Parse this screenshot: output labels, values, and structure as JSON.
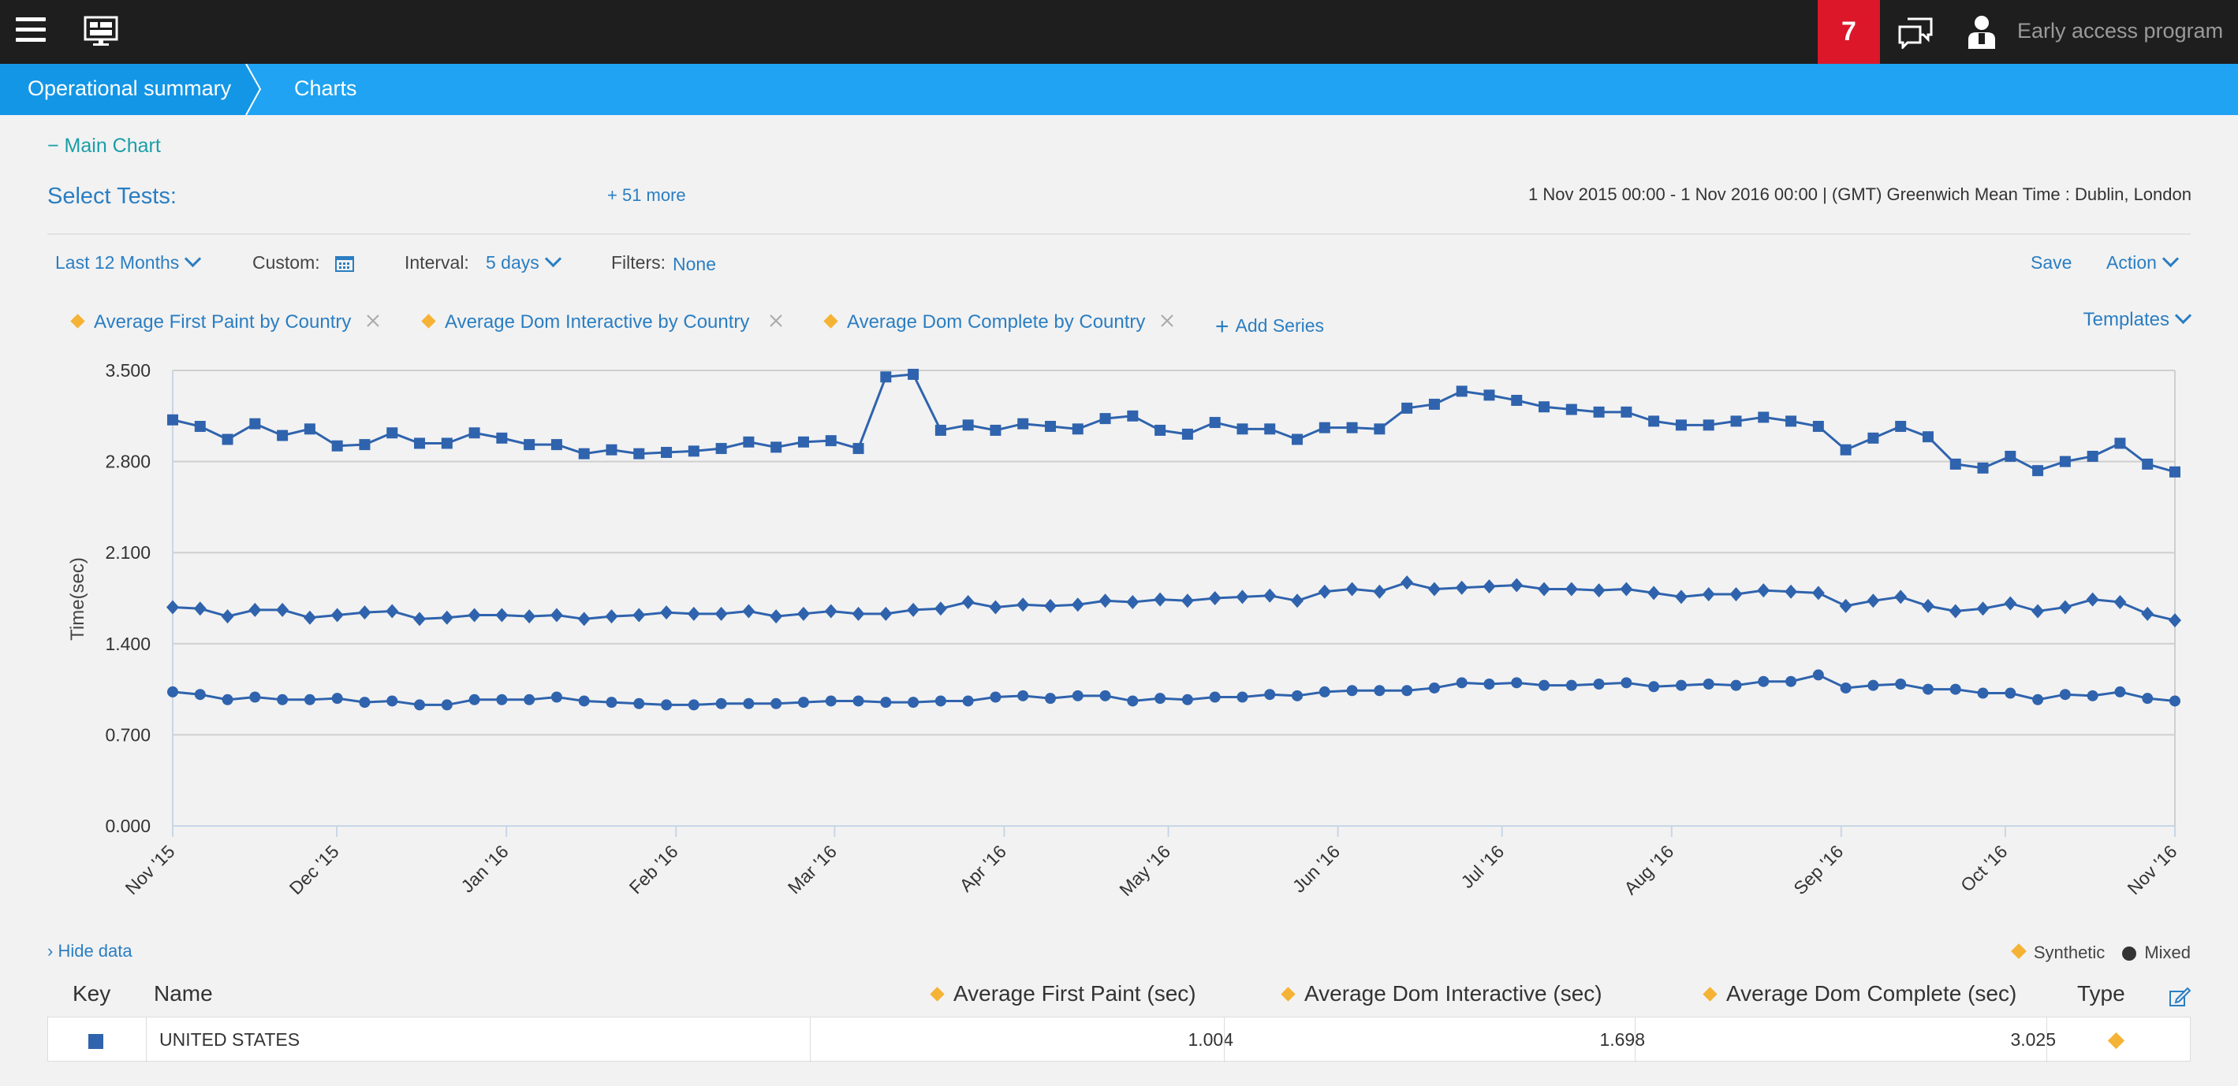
{
  "topbar": {
    "notification_count": "7",
    "early_access": "Early access program"
  },
  "breadcrumb": {
    "items": [
      "Operational summary",
      "Charts"
    ]
  },
  "main_chart_toggle": "− Main Chart",
  "select_tests": {
    "label": "Select Tests:",
    "more": "+ 51 more"
  },
  "date_range": "1 Nov 2015 00:00 - 1 Nov 2016 00:00  | (GMT) Greenwich Mean Time : Dublin, London",
  "controls": {
    "period": "Last 12 Months",
    "custom_label": "Custom:",
    "interval_label": "Interval:",
    "interval_value": "5 days",
    "filters_label": "Filters:",
    "filters_value": "None",
    "save": "Save",
    "action": "Action"
  },
  "series_chips": [
    "Average First Paint by Country",
    "Average Dom Interactive by Country",
    "Average Dom Complete by Country"
  ],
  "add_series": "Add Series",
  "templates": "Templates",
  "colors": {
    "series": "#2f63ad",
    "accent": "#2a7ec2",
    "synthetic": "#f5b335",
    "badge": "#dc172a",
    "breadcrumb": "#1fa3f2"
  },
  "chart_data": {
    "type": "line",
    "ylabel": "Time(sec)",
    "xlabel": "",
    "ylim": [
      0,
      3.5
    ],
    "y_ticks": [
      "0.000",
      "0.700",
      "1.400",
      "2.100",
      "2.800",
      "3.500"
    ],
    "x_tick_labels": [
      "Nov '15",
      "Dec '15",
      "Jan '16",
      "Feb '16",
      "Mar '16",
      "Apr '16",
      "May '16",
      "Jun '16",
      "Jul '16",
      "Aug '16",
      "Sep '16",
      "Oct '16",
      "Nov '16"
    ],
    "series": [
      {
        "marker": "square",
        "values": [
          3.12,
          3.07,
          2.97,
          3.09,
          3.0,
          3.05,
          2.92,
          2.93,
          3.02,
          2.94,
          2.94,
          3.02,
          2.98,
          2.93,
          2.93,
          2.86,
          2.89,
          2.86,
          2.87,
          2.88,
          2.9,
          2.95,
          2.91,
          2.95,
          2.96,
          2.9,
          3.45,
          3.47,
          3.04,
          3.08,
          3.04,
          3.09,
          3.07,
          3.05,
          3.13,
          3.15,
          3.04,
          3.01,
          3.1,
          3.05,
          3.05,
          2.97,
          3.06,
          3.06,
          3.05,
          3.21,
          3.24,
          3.34,
          3.31,
          3.27,
          3.22,
          3.2,
          3.18,
          3.18,
          3.11,
          3.08,
          3.08,
          3.11,
          3.14,
          3.11,
          3.07,
          2.89,
          2.98,
          3.07,
          2.99,
          2.78,
          2.75,
          2.84,
          2.73,
          2.8,
          2.84,
          2.94,
          2.78,
          2.72
        ]
      },
      {
        "marker": "diamond",
        "values": [
          1.68,
          1.67,
          1.61,
          1.66,
          1.66,
          1.6,
          1.62,
          1.64,
          1.65,
          1.59,
          1.6,
          1.62,
          1.62,
          1.61,
          1.62,
          1.59,
          1.61,
          1.62,
          1.64,
          1.63,
          1.63,
          1.65,
          1.61,
          1.63,
          1.65,
          1.63,
          1.63,
          1.66,
          1.67,
          1.72,
          1.68,
          1.7,
          1.69,
          1.7,
          1.73,
          1.72,
          1.74,
          1.73,
          1.75,
          1.76,
          1.77,
          1.73,
          1.8,
          1.82,
          1.8,
          1.87,
          1.82,
          1.83,
          1.84,
          1.85,
          1.82,
          1.82,
          1.81,
          1.82,
          1.79,
          1.76,
          1.78,
          1.78,
          1.81,
          1.8,
          1.79,
          1.69,
          1.73,
          1.76,
          1.69,
          1.65,
          1.67,
          1.71,
          1.65,
          1.68,
          1.74,
          1.72,
          1.63,
          1.58
        ]
      },
      {
        "marker": "circle",
        "values": [
          1.03,
          1.01,
          0.97,
          0.99,
          0.97,
          0.97,
          0.98,
          0.95,
          0.96,
          0.93,
          0.93,
          0.97,
          0.97,
          0.97,
          0.99,
          0.96,
          0.95,
          0.94,
          0.93,
          0.93,
          0.94,
          0.94,
          0.94,
          0.95,
          0.96,
          0.96,
          0.95,
          0.95,
          0.96,
          0.96,
          0.99,
          1.0,
          0.98,
          1.0,
          1.0,
          0.96,
          0.98,
          0.97,
          0.99,
          0.99,
          1.01,
          1.0,
          1.03,
          1.04,
          1.04,
          1.04,
          1.06,
          1.1,
          1.09,
          1.1,
          1.08,
          1.08,
          1.09,
          1.1,
          1.07,
          1.08,
          1.09,
          1.08,
          1.11,
          1.11,
          1.16,
          1.06,
          1.08,
          1.09,
          1.05,
          1.05,
          1.02,
          1.02,
          0.97,
          1.01,
          1.0,
          1.03,
          0.98,
          0.96
        ]
      }
    ]
  },
  "data_table": {
    "hide_data": "› Hide data",
    "legend_synthetic": "Synthetic",
    "legend_mixed": "Mixed",
    "headers": {
      "key": "Key",
      "name": "Name",
      "first_paint": "Average First Paint (sec)",
      "dom_interactive": "Average Dom Interactive (sec)",
      "dom_complete": "Average Dom Complete (sec)",
      "type": "Type"
    },
    "rows": [
      {
        "name": "UNITED STATES",
        "first_paint": "1.004",
        "dom_interactive": "1.698",
        "dom_complete": "3.025"
      }
    ]
  }
}
